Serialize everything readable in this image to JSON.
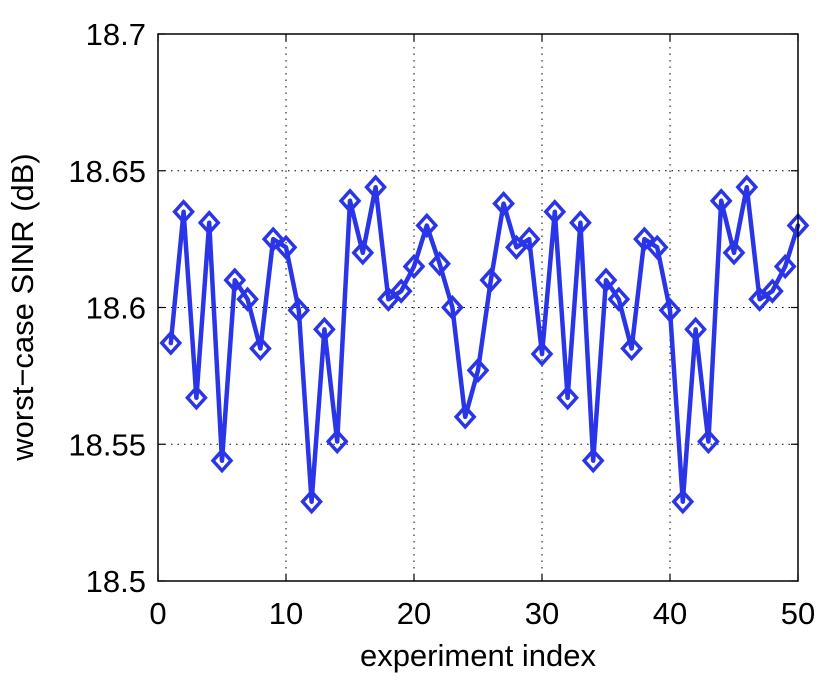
{
  "chart_data": {
    "type": "line",
    "title": "",
    "xlabel": "experiment index",
    "ylabel": "worst−case SINR (dB)",
    "xlim": [
      0,
      50
    ],
    "ylim": [
      18.5,
      18.7
    ],
    "xticks": [
      0,
      10,
      20,
      30,
      40,
      50
    ],
    "yticks": [
      18.5,
      18.55,
      18.6,
      18.65,
      18.7
    ],
    "xtick_labels": [
      "0",
      "10",
      "20",
      "30",
      "40",
      "50"
    ],
    "ytick_labels": [
      "18.5",
      "18.55",
      "18.6",
      "18.65",
      "18.7"
    ],
    "grid": true,
    "marker": "diamond",
    "line_color": "#2a35e8",
    "series": [
      {
        "x": [
          1,
          2,
          3,
          4,
          5,
          6,
          7,
          8,
          9,
          10,
          11,
          12,
          13,
          14,
          15,
          16,
          17,
          18,
          19,
          20,
          21,
          22,
          23,
          24,
          25,
          26,
          27,
          28,
          29,
          30,
          31,
          32,
          33,
          34,
          35,
          36,
          37,
          38,
          39,
          40,
          41,
          42,
          43,
          44,
          45,
          46,
          47,
          48,
          49,
          50
        ],
        "values": [
          18.587,
          18.635,
          18.567,
          18.631,
          18.544,
          18.61,
          18.603,
          18.585,
          18.625,
          18.622,
          18.599,
          18.529,
          18.592,
          18.551,
          18.639,
          18.62,
          18.644,
          18.603,
          18.606,
          18.615,
          18.63,
          18.616,
          18.6,
          18.56,
          18.577,
          18.61,
          18.638,
          18.622,
          18.625,
          18.583,
          18.635,
          18.567,
          18.631,
          18.544,
          18.61,
          18.603,
          18.585,
          18.625,
          18.622,
          18.599,
          18.529,
          18.592,
          18.551,
          18.639,
          18.62,
          18.644,
          18.603,
          18.606,
          18.615,
          18.63
        ]
      }
    ]
  }
}
